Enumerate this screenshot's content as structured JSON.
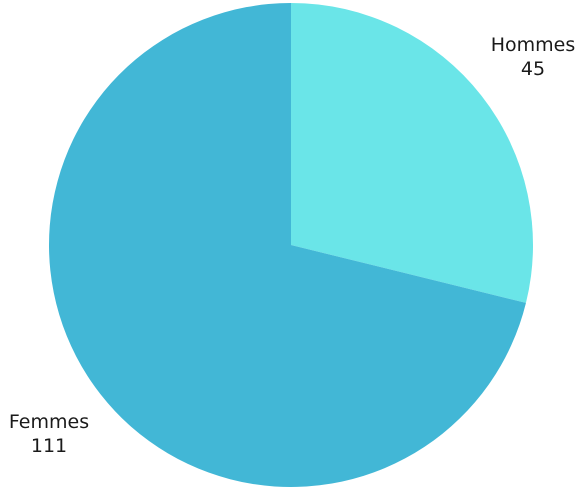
{
  "chart_data": {
    "type": "pie",
    "slices": [
      {
        "label": "Hommes",
        "value": 45,
        "value_text": "45",
        "color": "#6ae5e8"
      },
      {
        "label": "Femmes",
        "value": 111,
        "value_text": "111",
        "color": "#42b7d6"
      }
    ],
    "start": "12 o'clock",
    "direction": "clockwise",
    "legend": "none",
    "data_labels": "outside"
  }
}
